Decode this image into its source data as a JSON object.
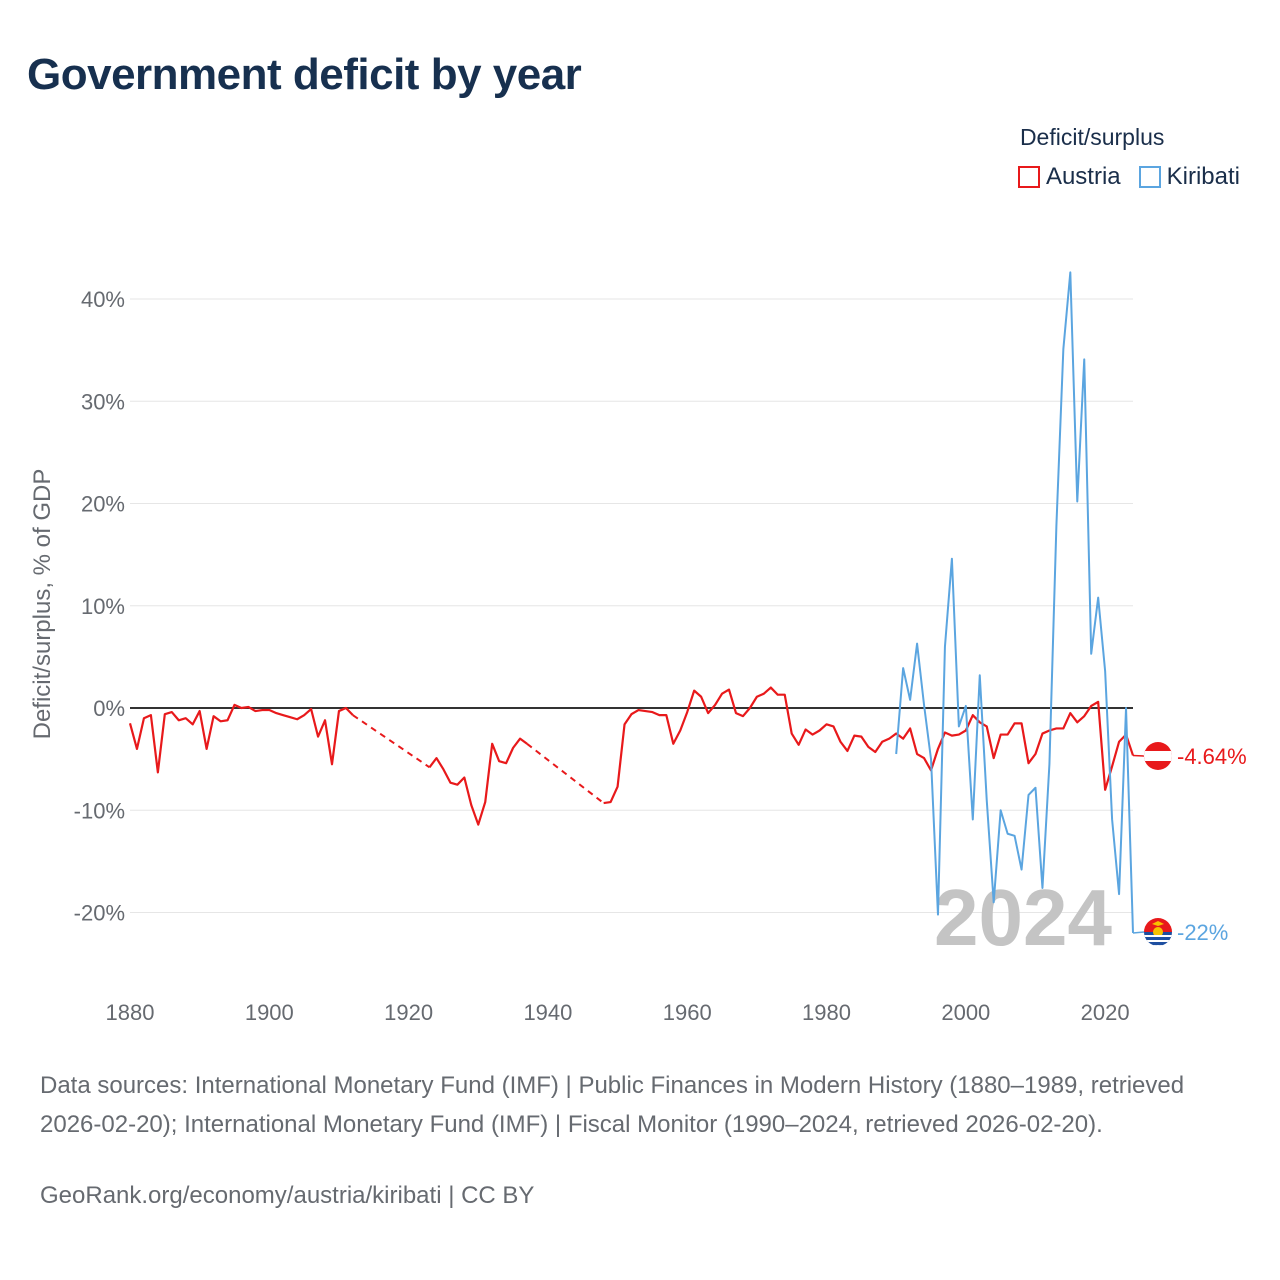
{
  "title": "Government deficit by year",
  "legend": {
    "title": "Deficit/surplus",
    "items": [
      {
        "name": "Austria",
        "color": "#e8191b"
      },
      {
        "name": "Kiribati",
        "color": "#5ba5e0"
      }
    ]
  },
  "chart_data": {
    "type": "line",
    "ylabel": "Deficit/surplus, % of GDP",
    "xlim": [
      1880,
      2024
    ],
    "ylim": [
      -26,
      44
    ],
    "xticks": [
      1880,
      1900,
      1920,
      1940,
      1960,
      1980,
      2000,
      2020
    ],
    "yticks": [
      {
        "value": 40,
        "label": "40%"
      },
      {
        "value": 30,
        "label": "30%"
      },
      {
        "value": 20,
        "label": "20%"
      },
      {
        "value": 10,
        "label": "10%"
      },
      {
        "value": 0,
        "label": "0%"
      },
      {
        "value": -10,
        "label": "-10%"
      },
      {
        "value": -20,
        "label": "-20%"
      }
    ],
    "year_watermark": "2024",
    "series": [
      {
        "name": "Austria",
        "color": "#e8191b",
        "end_label": "-4.64%",
        "flag_icon": "austria-flag-icon",
        "points": [
          [
            1880,
            -1.5
          ],
          [
            1881,
            -4
          ],
          [
            1882,
            -1
          ],
          [
            1883,
            -0.7
          ],
          [
            1884,
            -6.3
          ],
          [
            1885,
            -0.6
          ],
          [
            1886,
            -0.4
          ],
          [
            1887,
            -1.2
          ],
          [
            1888,
            -1
          ],
          [
            1889,
            -1.6
          ],
          [
            1890,
            -0.3
          ],
          [
            1891,
            -4
          ],
          [
            1892,
            -0.8
          ],
          [
            1893,
            -1.3
          ],
          [
            1894,
            -1.2
          ],
          [
            1895,
            0.3
          ],
          [
            1896,
            0
          ],
          [
            1897,
            0.1
          ],
          [
            1898,
            -0.3
          ],
          [
            1899,
            -0.2
          ],
          [
            1900,
            -0.2
          ],
          [
            1901,
            -0.5
          ],
          [
            1902,
            -0.7
          ],
          [
            1903,
            -0.9
          ],
          [
            1904,
            -1.1
          ],
          [
            1905,
            -0.7
          ],
          [
            1906,
            -0.1
          ],
          [
            1907,
            -2.8
          ],
          [
            1908,
            -1.2
          ],
          [
            1909,
            -5.5
          ],
          [
            1910,
            -0.3
          ],
          [
            1911,
            0
          ],
          [
            1912,
            -0.7
          ],
          [
            1923,
            -5.8
          ],
          [
            1924,
            -4.9
          ],
          [
            1925,
            -6
          ],
          [
            1926,
            -7.3
          ],
          [
            1927,
            -7.5
          ],
          [
            1928,
            -6.8
          ],
          [
            1929,
            -9.5
          ],
          [
            1930,
            -11.4
          ],
          [
            1931,
            -9.2
          ],
          [
            1932,
            -3.5
          ],
          [
            1933,
            -5.2
          ],
          [
            1934,
            -5.4
          ],
          [
            1935,
            -3.9
          ],
          [
            1936,
            -3
          ],
          [
            1937,
            -3.5
          ],
          [
            1948,
            -9.3
          ],
          [
            1949,
            -9.2
          ],
          [
            1950,
            -7.7
          ],
          [
            1951,
            -1.6
          ],
          [
            1952,
            -0.6
          ],
          [
            1953,
            -0.2
          ],
          [
            1954,
            -0.3
          ],
          [
            1955,
            -0.4
          ],
          [
            1956,
            -0.7
          ],
          [
            1957,
            -0.7
          ],
          [
            1958,
            -3.5
          ],
          [
            1959,
            -2.2
          ],
          [
            1960,
            -0.4
          ],
          [
            1961,
            1.7
          ],
          [
            1962,
            1.1
          ],
          [
            1963,
            -0.5
          ],
          [
            1964,
            0.3
          ],
          [
            1965,
            1.4
          ],
          [
            1966,
            1.8
          ],
          [
            1967,
            -0.5
          ],
          [
            1968,
            -0.8
          ],
          [
            1969,
            0
          ],
          [
            1970,
            1.1
          ],
          [
            1971,
            1.4
          ],
          [
            1972,
            2
          ],
          [
            1973,
            1.3
          ],
          [
            1974,
            1.3
          ],
          [
            1975,
            -2.5
          ],
          [
            1976,
            -3.6
          ],
          [
            1977,
            -2.1
          ],
          [
            1978,
            -2.6
          ],
          [
            1979,
            -2.2
          ],
          [
            1980,
            -1.6
          ],
          [
            1981,
            -1.8
          ],
          [
            1982,
            -3.3
          ],
          [
            1983,
            -4.2
          ],
          [
            1984,
            -2.7
          ],
          [
            1985,
            -2.8
          ],
          [
            1986,
            -3.8
          ],
          [
            1987,
            -4.3
          ],
          [
            1988,
            -3.3
          ],
          [
            1989,
            -3
          ],
          [
            1990,
            -2.5
          ],
          [
            1991,
            -3
          ],
          [
            1992,
            -2
          ],
          [
            1993,
            -4.5
          ],
          [
            1994,
            -4.9
          ],
          [
            1995,
            -6.1
          ],
          [
            1996,
            -4
          ],
          [
            1997,
            -2.4
          ],
          [
            1998,
            -2.7
          ],
          [
            1999,
            -2.6
          ],
          [
            2000,
            -2.2
          ],
          [
            2001,
            -0.7
          ],
          [
            2002,
            -1.4
          ],
          [
            2003,
            -1.8
          ],
          [
            2004,
            -4.9
          ],
          [
            2005,
            -2.6
          ],
          [
            2006,
            -2.6
          ],
          [
            2007,
            -1.5
          ],
          [
            2008,
            -1.5
          ],
          [
            2009,
            -5.4
          ],
          [
            2010,
            -4.5
          ],
          [
            2011,
            -2.5
          ],
          [
            2012,
            -2.2
          ],
          [
            2013,
            -2
          ],
          [
            2014,
            -2
          ],
          [
            2015,
            -0.5
          ],
          [
            2016,
            -1.4
          ],
          [
            2017,
            -0.8
          ],
          [
            2018,
            0.2
          ],
          [
            2019,
            0.6
          ],
          [
            2020,
            -8
          ],
          [
            2021,
            -5.7
          ],
          [
            2022,
            -3.3
          ],
          [
            2023,
            -2.6
          ],
          [
            2024,
            -4.64
          ]
        ]
      },
      {
        "name": "Kiribati",
        "color": "#5ba5e0",
        "end_label": "-22%",
        "flag_icon": "kiribati-flag-icon",
        "points": [
          [
            1990,
            -4.5
          ],
          [
            1991,
            3.9
          ],
          [
            1992,
            0.8
          ],
          [
            1993,
            6.3
          ],
          [
            1994,
            0.3
          ],
          [
            1995,
            -5
          ],
          [
            1996,
            -20.2
          ],
          [
            1997,
            6
          ],
          [
            1998,
            14.6
          ],
          [
            1999,
            -1.8
          ],
          [
            2000,
            0.2
          ],
          [
            2001,
            -10.9
          ],
          [
            2002,
            3.2
          ],
          [
            2003,
            -9
          ],
          [
            2004,
            -19
          ],
          [
            2005,
            -10
          ],
          [
            2006,
            -12.3
          ],
          [
            2007,
            -12.5
          ],
          [
            2008,
            -15.8
          ],
          [
            2009,
            -8.5
          ],
          [
            2010,
            -7.8
          ],
          [
            2011,
            -17.6
          ],
          [
            2012,
            -5.5
          ],
          [
            2013,
            17.8
          ],
          [
            2014,
            35.1
          ],
          [
            2015,
            42.6
          ],
          [
            2016,
            20.2
          ],
          [
            2017,
            34.1
          ],
          [
            2018,
            5.3
          ],
          [
            2019,
            10.8
          ],
          [
            2020,
            3.6
          ],
          [
            2021,
            -10.9
          ],
          [
            2022,
            -18.2
          ],
          [
            2023,
            0
          ],
          [
            2024,
            -22
          ]
        ]
      }
    ]
  },
  "footer": {
    "sources": "Data sources: International Monetary Fund (IMF) | Public Finances in Modern History (1880–1989, retrieved 2026-02-20); International Monetary Fund (IMF) | Fiscal Monitor (1990–2024, retrieved 2026-02-20).",
    "url": "GeoRank.org/economy/austria/kiribati | CC BY"
  }
}
